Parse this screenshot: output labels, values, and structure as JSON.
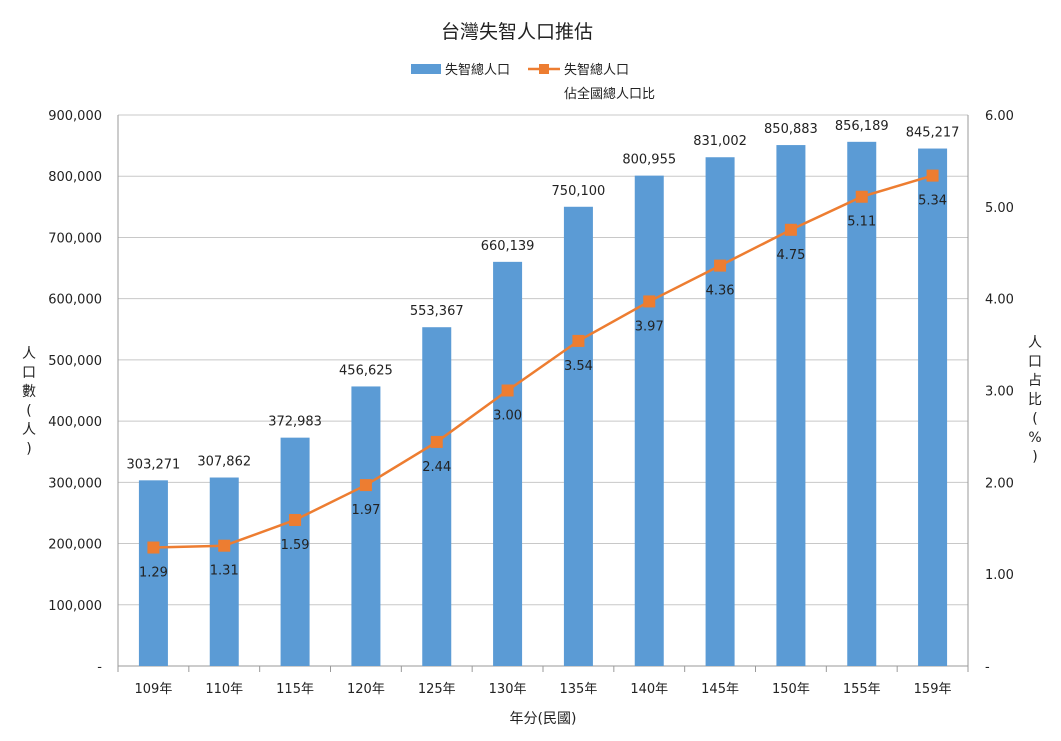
{
  "chart_data": {
    "type": "bar",
    "title": "台灣失智人口推估",
    "categories": [
      "109年",
      "110年",
      "115年",
      "120年",
      "125年",
      "130年",
      "135年",
      "140年",
      "145年",
      "150年",
      "155年",
      "159年"
    ],
    "series": [
      {
        "name": "失智總人口",
        "type": "bar",
        "axis": "left",
        "color": "#5b9bd5",
        "values": [
          303271,
          307862,
          372983,
          456625,
          553367,
          660139,
          750100,
          800955,
          831002,
          850883,
          856189,
          845217
        ],
        "labels": [
          "303,271",
          "307,862",
          "372,983",
          "456,625",
          "553,367",
          "660,139",
          "750,100",
          "800,955",
          "831,002",
          "850,883",
          "856,189",
          "845,217"
        ]
      },
      {
        "name": "失智總人口",
        "name_line2": "佔全國總人口比",
        "type": "line",
        "axis": "right",
        "color": "#ed7d31",
        "values": [
          1.29,
          1.31,
          1.59,
          1.97,
          2.44,
          3.0,
          3.54,
          3.97,
          4.36,
          4.75,
          5.11,
          5.34
        ],
        "labels": [
          "1.29",
          "1.31",
          "1.59",
          "1.97",
          "2.44",
          "3.00",
          "3.54",
          "3.97",
          "4.36",
          "4.75",
          "5.11",
          "5.34"
        ]
      }
    ],
    "xlabel": "年分(民國)",
    "ylabel_left": "人口數(人)",
    "ylabel_right": "人口占比(%)",
    "ylim_left": [
      0,
      900000
    ],
    "ylim_right": [
      0,
      6
    ],
    "left_ticks": [
      "-",
      "100,000",
      "200,000",
      "300,000",
      "400,000",
      "500,000",
      "600,000",
      "700,000",
      "800,000",
      "900,000"
    ],
    "right_ticks": [
      "-",
      "1.00",
      "2.00",
      "3.00",
      "4.00",
      "5.00",
      "6.00"
    ],
    "grid": true,
    "legend_position": "top"
  }
}
